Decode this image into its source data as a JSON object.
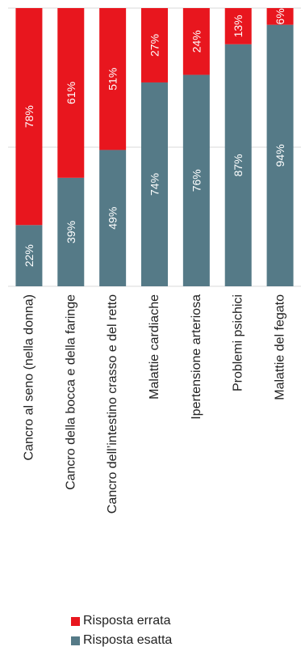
{
  "chart_data": {
    "type": "bar",
    "stacked": true,
    "normalized_percent": true,
    "categories": [
      "Cancro al seno (nella donna)",
      "Cancro della bocca e della faringe",
      "Cancro dell’intestino crasso e del retto",
      "Malattie cardiache",
      "Ipertensione arteriosa",
      "Problemi psichici",
      "Malattie del fegato"
    ],
    "series": [
      {
        "name": "Risposta esatta",
        "color": "#557a87",
        "values": [
          22,
          39,
          49,
          74,
          76,
          87,
          94
        ],
        "labels": [
          "22%",
          "39%",
          "49%",
          "74%",
          "76%",
          "87%",
          "94%"
        ]
      },
      {
        "name": "Risposta errata",
        "color": "#e8161e",
        "values": [
          78,
          61,
          51,
          27,
          24,
          13,
          6
        ],
        "labels": [
          "78%",
          "61%",
          "51%",
          "27%",
          "24%",
          "13%",
          "6%"
        ]
      }
    ],
    "ylim": [
      0,
      100
    ],
    "grid": true,
    "category_label_rotation": -90,
    "legend_position": "bottom"
  },
  "legend": {
    "items": [
      {
        "label": "Risposta errata",
        "color": "#e8161e"
      },
      {
        "label": "Risposta esatta",
        "color": "#557a87"
      }
    ]
  }
}
